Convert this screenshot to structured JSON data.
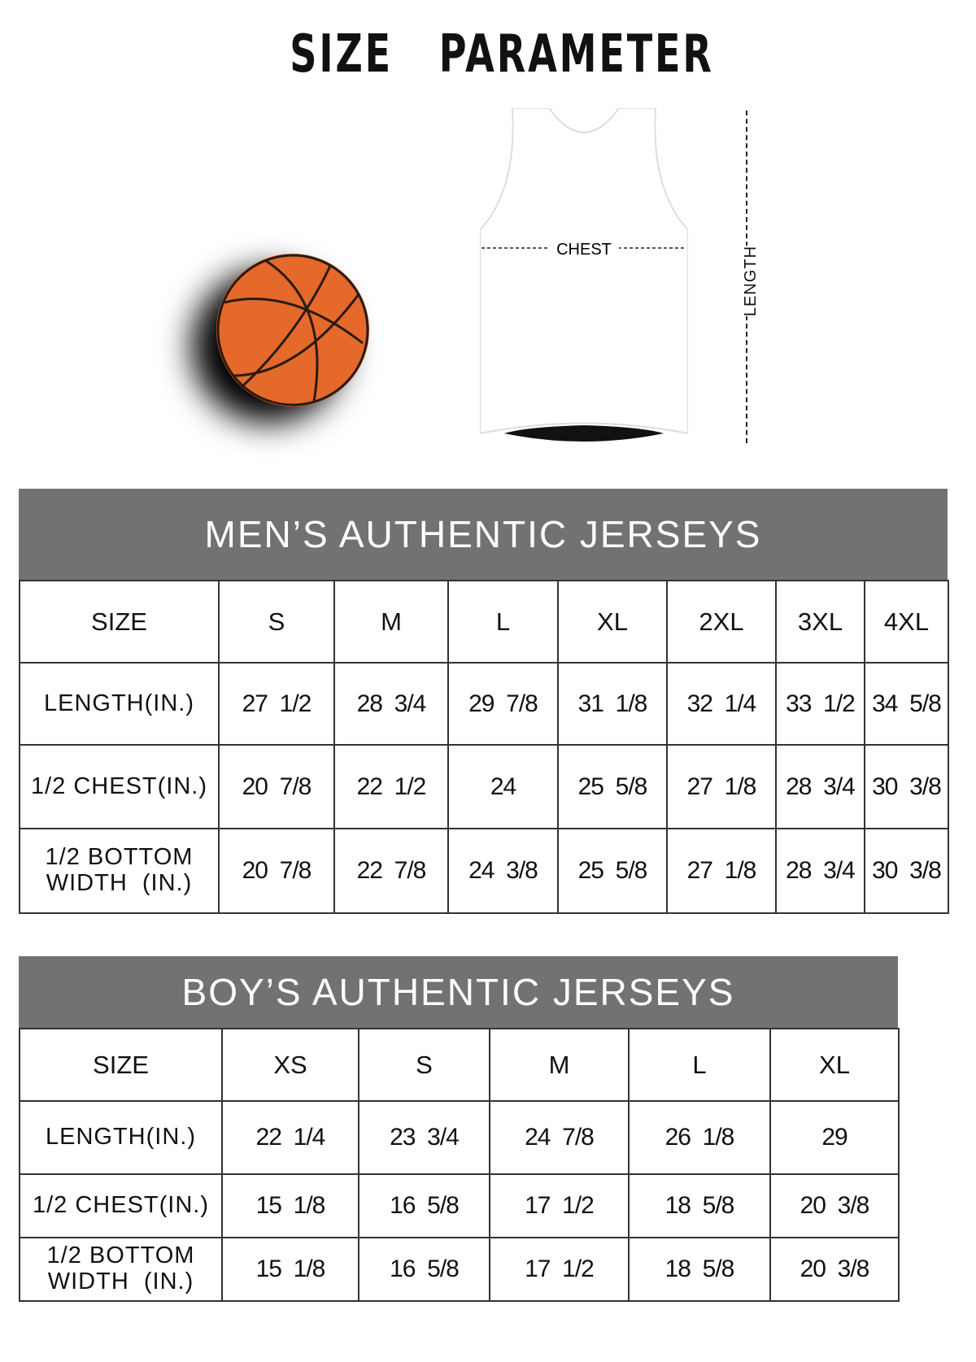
{
  "title": "SIZE   PARAMETER",
  "diagram": {
    "chest_label": "CHEST",
    "length_label": "LENGTH",
    "ball_color": "#e4692b"
  },
  "men": {
    "title": "MEN’S AUTHENTIC JERSEYS",
    "header": [
      "SIZE",
      "S",
      "M",
      "L",
      "XL",
      "2XL",
      "3XL",
      "4XL"
    ],
    "rows": [
      [
        "LENGTH(IN.)",
        "27  1/2",
        "28  3/4",
        "29  7/8",
        "31  1/8",
        "32  1/4",
        "33  1/2",
        "34  5/8"
      ],
      [
        "1/2 CHEST(IN.)",
        "20  7/8",
        "22  1/2",
        "24",
        "25  5/8",
        "27  1/8",
        "28  3/4",
        "30  3/8"
      ],
      [
        "1/2 BOTTOM WIDTH  (IN.)",
        "20  7/8",
        "22  7/8",
        "24  3/8",
        "25  5/8",
        "27  1/8",
        "28  3/4",
        "30  3/8"
      ]
    ]
  },
  "boys": {
    "title": "BOY’S AUTHENTIC JERSEYS",
    "header": [
      "SIZE",
      "XS",
      "S",
      "M",
      "L",
      "XL"
    ],
    "rows": [
      [
        "LENGTH(IN.)",
        "22  1/4",
        "23  3/4",
        "24  7/8",
        "26  1/8",
        "29"
      ],
      [
        "1/2 CHEST(IN.)",
        "15  1/8",
        "16  5/8",
        "17  1/2",
        "18  5/8",
        "20  3/8"
      ],
      [
        "1/2 BOTTOM WIDTH  (IN.)",
        "15  1/8",
        "16  5/8",
        "17  1/2",
        "18  5/8",
        "20  3/8"
      ]
    ]
  },
  "colors": {
    "band": "#727272"
  }
}
